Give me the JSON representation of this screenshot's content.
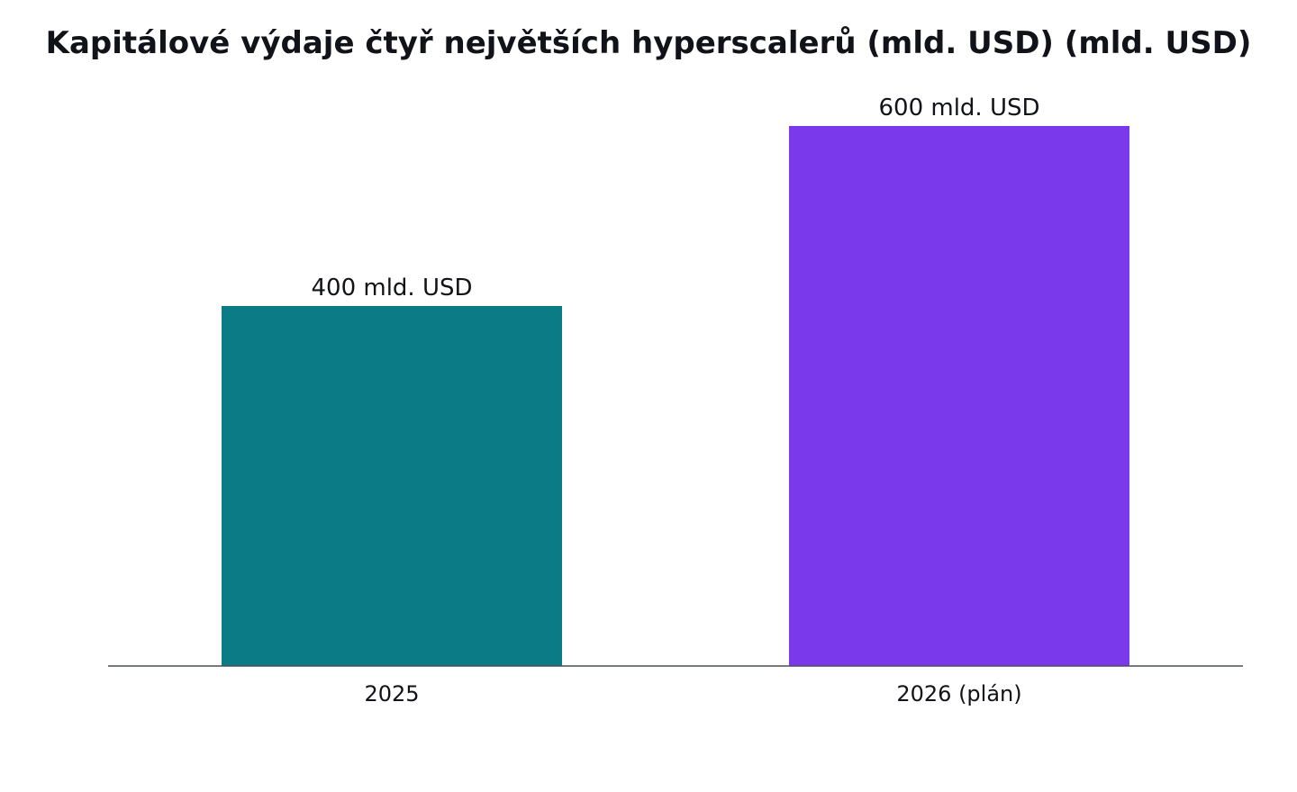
{
  "chart_data": {
    "type": "bar",
    "title": "Kapitálové výdaje čtyř největších hyperscalerů (mld. USD) (mld. USD)",
    "xlabel": "",
    "ylabel": "",
    "categories": [
      "2025",
      "2026 (plán)"
    ],
    "values": [
      400,
      600
    ],
    "value_labels": [
      "400 mld. USD",
      "600 mld. USD"
    ],
    "colors": [
      "#0b7b85",
      "#7a3aec"
    ],
    "ylim": [
      0,
      600
    ],
    "grid": false,
    "legend": "none"
  }
}
